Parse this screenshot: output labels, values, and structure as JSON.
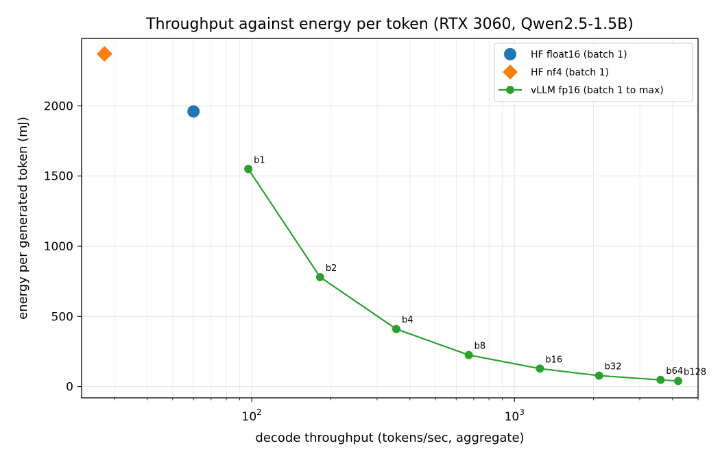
{
  "chart_data": {
    "type": "scatter",
    "title": "Throughput against energy per token (RTX 3060, Qwen2.5-1.5B)",
    "xlabel": "decode throughput (tokens/sec, aggregate)",
    "ylabel": "energy per generated token (mJ)",
    "xscale": "log",
    "xlim": [
      22.5,
      5000
    ],
    "ylim": [
      -80,
      2480
    ],
    "xticks": [
      {
        "value": 100,
        "base": "10",
        "exp": "2"
      },
      {
        "value": 1000,
        "base": "10",
        "exp": "3"
      }
    ],
    "yticks": [
      {
        "value": 0,
        "label": "0"
      },
      {
        "value": 500,
        "label": "500"
      },
      {
        "value": 1000,
        "label": "1000"
      },
      {
        "value": 1500,
        "label": "1500"
      },
      {
        "value": 2000,
        "label": "2000"
      }
    ],
    "grid": true,
    "legend_position": "top-right",
    "series": [
      {
        "name": "HF float16 (batch 1)",
        "kind": "scatter",
        "marker": "circle",
        "color": "#1f77b4",
        "points": [
          {
            "x": 60,
            "y": 1960
          }
        ]
      },
      {
        "name": "HF nf4 (batch 1)",
        "kind": "scatter",
        "marker": "diamond",
        "color": "#ff7f0e",
        "points": [
          {
            "x": 27.5,
            "y": 2370
          }
        ]
      },
      {
        "name": "vLLM fp16 (batch 1 to max)",
        "kind": "line",
        "marker": "circle",
        "color": "#2ca02c",
        "points": [
          {
            "x": 97,
            "y": 1550,
            "label": "b1"
          },
          {
            "x": 182,
            "y": 780,
            "label": "b2"
          },
          {
            "x": 355,
            "y": 410,
            "label": "b4"
          },
          {
            "x": 670,
            "y": 225,
            "label": "b8"
          },
          {
            "x": 1250,
            "y": 128,
            "label": "b16"
          },
          {
            "x": 2100,
            "y": 78,
            "label": "b32"
          },
          {
            "x": 3600,
            "y": 48,
            "label": "b64"
          },
          {
            "x": 4200,
            "y": 40,
            "label": "b128"
          }
        ]
      }
    ]
  }
}
